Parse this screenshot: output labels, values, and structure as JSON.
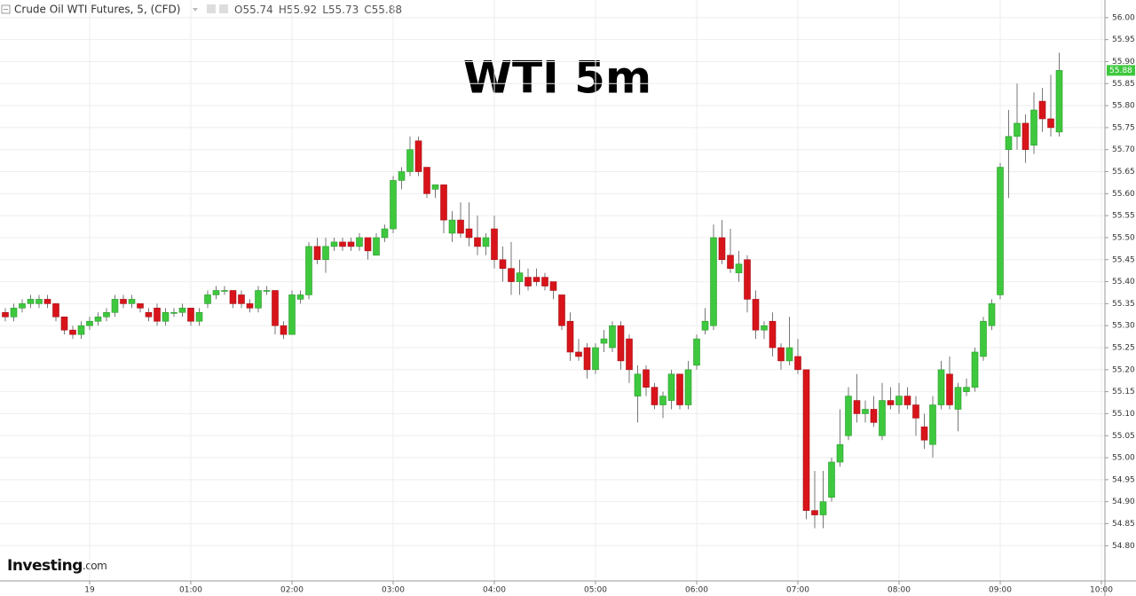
{
  "header": {
    "instrument": "Crude Oil WTI Futures, 5, (CFD)",
    "ohlc": [
      "O55.74",
      "H55.92",
      "L55.73",
      "C55.88"
    ]
  },
  "logo": {
    "brand": "Investing",
    "suffix": ".com"
  },
  "chart_data": {
    "type": "candlestick",
    "title": "WTI 5m",
    "up_color": "#3ec83e",
    "down_color": "#d8141a",
    "grid": true,
    "x": [
      "23:10",
      "23:15",
      "23:20",
      "23:25",
      "23:30",
      "23:35",
      "23:40",
      "23:45",
      "23:50",
      "23:55",
      "00:00",
      "00:05",
      "00:10",
      "00:15",
      "00:20",
      "00:25",
      "00:30",
      "00:35",
      "00:40",
      "00:45",
      "00:50",
      "00:55",
      "01:00",
      "01:05",
      "01:10",
      "01:15",
      "01:20",
      "01:25",
      "01:30",
      "01:35",
      "01:40",
      "01:45",
      "01:50",
      "01:55",
      "02:00",
      "02:05",
      "02:10",
      "02:15",
      "02:20",
      "02:25",
      "02:30",
      "02:35",
      "02:40",
      "02:45",
      "02:50",
      "02:55",
      "03:00",
      "03:05",
      "03:10",
      "03:15",
      "03:20",
      "03:25",
      "03:30",
      "03:35",
      "03:40",
      "03:45",
      "03:50",
      "03:55",
      "04:00",
      "04:05",
      "04:10",
      "04:15",
      "04:20",
      "04:25",
      "04:30",
      "04:35",
      "04:40",
      "04:45",
      "04:50",
      "04:55",
      "05:00",
      "05:05",
      "05:10",
      "05:15",
      "05:20",
      "05:25",
      "05:30",
      "05:35",
      "05:40",
      "05:45",
      "05:50",
      "05:55",
      "06:00",
      "06:05",
      "06:10",
      "06:15",
      "06:20",
      "06:25",
      "06:30",
      "06:35",
      "06:40",
      "06:45",
      "06:50",
      "06:55",
      "07:00",
      "07:05",
      "07:10",
      "07:15",
      "07:20",
      "07:25",
      "07:30",
      "07:35",
      "07:40",
      "07:45",
      "07:50",
      "07:55",
      "08:00",
      "08:05",
      "08:10",
      "08:15",
      "08:20",
      "08:25",
      "08:30",
      "08:35",
      "08:40",
      "08:45",
      "08:50",
      "08:55",
      "09:00",
      "09:05",
      "09:10",
      "09:15",
      "09:20",
      "09:25",
      "09:30",
      "09:35"
    ],
    "open": [
      55.33,
      55.32,
      55.34,
      55.35,
      55.35,
      55.36,
      55.35,
      55.32,
      55.29,
      55.28,
      55.3,
      55.31,
      55.32,
      55.33,
      55.36,
      55.35,
      55.35,
      55.33,
      55.34,
      55.31,
      55.33,
      55.33,
      55.34,
      55.31,
      55.35,
      55.37,
      55.38,
      55.38,
      55.37,
      55.35,
      55.34,
      55.38,
      55.38,
      55.3,
      55.28,
      55.36,
      55.37,
      55.48,
      55.45,
      55.48,
      55.49,
      55.49,
      55.48,
      55.5,
      55.46,
      55.5,
      55.52,
      55.63,
      55.65,
      55.72,
      55.66,
      55.61,
      55.62,
      55.51,
      55.54,
      55.52,
      55.5,
      55.48,
      55.52,
      55.45,
      55.43,
      55.4,
      55.41,
      55.41,
      55.41,
      55.4,
      55.37,
      55.31,
      55.24,
      55.25,
      55.2,
      55.26,
      55.25,
      55.3,
      55.27,
      55.14,
      55.2,
      55.16,
      55.12,
      55.13,
      55.19,
      55.12,
      55.21,
      55.29,
      55.3,
      55.5,
      55.46,
      55.42,
      55.45,
      55.36,
      55.29,
      55.31,
      55.25,
      55.22,
      55.23,
      55.2,
      54.88,
      54.87,
      54.91,
      54.99,
      55.05,
      55.13,
      55.1,
      55.11,
      55.05,
      55.13,
      55.12,
      55.14,
      55.12,
      55.07,
      55.03,
      55.12,
      55.19,
      55.11,
      55.15,
      55.16,
      55.23,
      55.3,
      55.37,
      55.7,
      55.73,
      55.76,
      55.71,
      55.81,
      55.77,
      55.74
    ],
    "high": [
      55.34,
      55.35,
      55.36,
      55.37,
      55.37,
      55.37,
      55.35,
      55.32,
      55.3,
      55.31,
      55.32,
      55.33,
      55.34,
      55.37,
      55.37,
      55.37,
      55.35,
      55.34,
      55.35,
      55.34,
      55.34,
      55.35,
      55.34,
      55.34,
      55.38,
      55.39,
      55.39,
      55.38,
      55.38,
      55.36,
      55.39,
      55.39,
      55.38,
      55.31,
      55.38,
      55.38,
      55.49,
      55.5,
      55.5,
      55.5,
      55.5,
      55.5,
      55.51,
      55.5,
      55.51,
      55.53,
      55.64,
      55.66,
      55.73,
      55.73,
      55.66,
      55.62,
      55.62,
      55.56,
      55.58,
      55.58,
      55.55,
      55.51,
      55.55,
      55.48,
      55.49,
      55.45,
      55.43,
      55.43,
      55.42,
      55.4,
      55.37,
      55.33,
      55.27,
      55.26,
      55.26,
      55.29,
      55.31,
      55.31,
      55.28,
      55.21,
      55.21,
      55.17,
      55.15,
      55.2,
      55.19,
      55.22,
      55.28,
      55.34,
      55.53,
      55.54,
      55.52,
      55.47,
      55.46,
      55.38,
      55.31,
      55.33,
      55.26,
      55.32,
      55.27,
      55.2,
      54.97,
      54.97,
      55.0,
      55.11,
      55.16,
      55.19,
      55.13,
      55.14,
      55.17,
      55.16,
      55.17,
      55.16,
      55.14,
      55.1,
      55.14,
      55.22,
      55.23,
      55.17,
      55.18,
      55.25,
      55.32,
      55.36,
      55.67,
      55.79,
      55.85,
      55.78,
      55.83,
      55.84,
      55.87,
      55.92
    ],
    "low": [
      55.31,
      55.31,
      55.33,
      55.34,
      55.34,
      55.34,
      55.31,
      55.28,
      55.27,
      55.27,
      55.29,
      55.3,
      55.31,
      55.32,
      55.34,
      55.34,
      55.33,
      55.31,
      55.3,
      55.3,
      55.32,
      55.32,
      55.3,
      55.3,
      55.34,
      55.36,
      55.37,
      55.34,
      55.34,
      55.33,
      55.33,
      55.37,
      55.28,
      55.27,
      55.28,
      55.35,
      55.36,
      55.44,
      55.42,
      55.47,
      55.47,
      55.47,
      55.47,
      55.45,
      55.46,
      55.49,
      55.51,
      55.61,
      55.64,
      55.64,
      55.59,
      55.59,
      55.51,
      55.49,
      55.5,
      55.48,
      55.46,
      55.46,
      55.43,
      55.4,
      55.37,
      55.37,
      55.38,
      55.39,
      55.38,
      55.36,
      55.29,
      55.22,
      55.22,
      55.18,
      55.19,
      55.24,
      55.24,
      55.2,
      55.17,
      55.08,
      55.14,
      55.11,
      55.09,
      55.11,
      55.11,
      55.11,
      55.2,
      55.28,
      55.29,
      55.44,
      55.42,
      55.4,
      55.33,
      55.27,
      55.27,
      55.23,
      55.2,
      55.21,
      55.19,
      54.86,
      54.84,
      54.84,
      54.9,
      54.98,
      55.04,
      55.08,
      55.08,
      55.07,
      55.04,
      55.11,
      55.1,
      55.11,
      55.05,
      55.02,
      55.0,
      55.11,
      55.11,
      55.06,
      55.14,
      55.15,
      55.22,
      55.29,
      55.36,
      55.59,
      55.7,
      55.67,
      55.69,
      55.74,
      55.73,
      55.73
    ],
    "close": [
      55.32,
      55.34,
      55.35,
      55.36,
      55.36,
      55.35,
      55.32,
      55.29,
      55.28,
      55.3,
      55.31,
      55.32,
      55.33,
      55.36,
      55.35,
      55.36,
      55.34,
      55.32,
      55.31,
      55.33,
      55.33,
      55.34,
      55.31,
      55.33,
      55.37,
      55.38,
      55.38,
      55.35,
      55.35,
      55.34,
      55.38,
      55.38,
      55.3,
      55.28,
      55.37,
      55.37,
      55.48,
      55.45,
      55.48,
      55.49,
      55.48,
      55.48,
      55.5,
      55.47,
      55.5,
      55.52,
      55.63,
      55.65,
      55.7,
      55.65,
      55.6,
      55.62,
      55.54,
      55.54,
      55.51,
      55.5,
      55.48,
      55.5,
      55.45,
      55.43,
      55.4,
      55.42,
      55.39,
      55.4,
      55.39,
      55.38,
      55.3,
      55.24,
      55.23,
      55.2,
      55.25,
      55.27,
      55.3,
      55.22,
      55.2,
      55.19,
      55.16,
      55.12,
      55.14,
      55.19,
      55.12,
      55.2,
      55.27,
      55.31,
      55.5,
      55.45,
      55.43,
      55.44,
      55.36,
      55.29,
      55.3,
      55.25,
      55.22,
      55.25,
      55.2,
      54.88,
      54.87,
      54.9,
      54.99,
      55.03,
      55.14,
      55.1,
      55.11,
      55.08,
      55.13,
      55.12,
      55.14,
      55.12,
      55.09,
      55.04,
      55.12,
      55.2,
      55.12,
      55.16,
      55.16,
      55.24,
      55.31,
      55.35,
      55.66,
      55.73,
      55.76,
      55.7,
      55.79,
      55.77,
      55.75,
      55.88
    ],
    "ylim": [
      54.72,
      56.04
    ],
    "yticks": [
      {
        "value": 54.8,
        "label": "54.80"
      },
      {
        "value": 54.85,
        "label": "54.85"
      },
      {
        "value": 54.9,
        "label": "54.90"
      },
      {
        "value": 54.95,
        "label": "54.95"
      },
      {
        "value": 55.0,
        "label": "55.00"
      },
      {
        "value": 55.05,
        "label": "55.05"
      },
      {
        "value": 55.1,
        "label": "55.10"
      },
      {
        "value": 55.15,
        "label": "55.15"
      },
      {
        "value": 55.2,
        "label": "55.20"
      },
      {
        "value": 55.25,
        "label": "55.25"
      },
      {
        "value": 55.3,
        "label": "55.30"
      },
      {
        "value": 55.35,
        "label": "55.35"
      },
      {
        "value": 55.4,
        "label": "55.40"
      },
      {
        "value": 55.45,
        "label": "55.45"
      },
      {
        "value": 55.5,
        "label": "55.50"
      },
      {
        "value": 55.55,
        "label": "55.55"
      },
      {
        "value": 55.6,
        "label": "55.60"
      },
      {
        "value": 55.65,
        "label": "55.65"
      },
      {
        "value": 55.7,
        "label": "55.70"
      },
      {
        "value": 55.75,
        "label": "55.75"
      },
      {
        "value": 55.8,
        "label": "55.80"
      },
      {
        "value": 55.85,
        "label": "55.85"
      },
      {
        "value": 55.9,
        "label": "55.90"
      },
      {
        "value": 55.95,
        "label": "55.95"
      },
      {
        "value": 56.0,
        "label": "56.00"
      }
    ],
    "xticks": [
      {
        "value": "00:00",
        "label": "19"
      },
      "01:00",
      "02:00",
      "03:00",
      "04:00",
      "05:00",
      "06:00",
      "07:00",
      "08:00",
      "09:00",
      "10:00"
    ]
  }
}
